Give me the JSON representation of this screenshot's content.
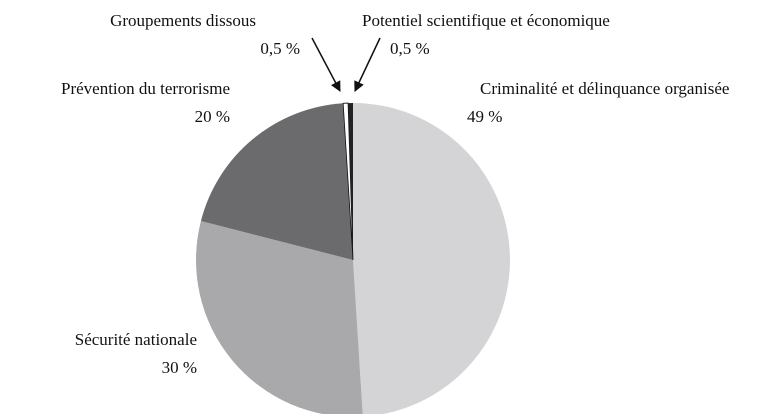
{
  "chart_data": {
    "type": "pie",
    "categories": [
      "Criminalité et délinquance organisée",
      "Sécurité nationale",
      "Prévention du terrorisme",
      "Groupements dissous",
      "Potentiel scientifique et économique"
    ],
    "values": [
      49,
      30,
      20,
      0.5,
      0.5
    ],
    "value_labels": [
      "49 %",
      "30 %",
      "20 %",
      "0,5 %",
      "0,5 %"
    ],
    "colors": [
      "#d4d4d6",
      "#a9a9ab",
      "#6b6b6e",
      "#ffffff",
      "#222222"
    ]
  }
}
